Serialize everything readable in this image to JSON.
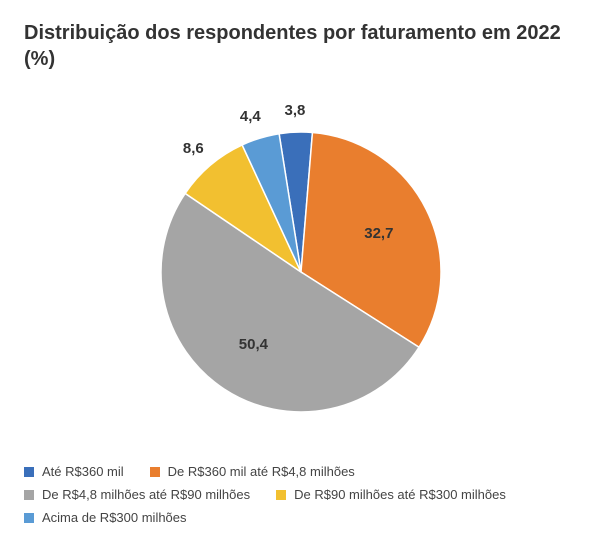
{
  "chart": {
    "type": "pie",
    "title": "Distribuição dos respondentes por faturamento em 2022 (%)",
    "title_fontsize": 20,
    "title_color": "#333333",
    "background_color": "#ffffff",
    "radius": 140,
    "start_angle_deg": -99,
    "label_fontsize": 15,
    "label_color": "#333333",
    "legend_fontsize": 13,
    "slices": [
      {
        "label": "Até R$360 mil",
        "value": 3.8,
        "value_text": "3,8",
        "color": "#3a6fba"
      },
      {
        "label": "De R$360 mil até R$4,8 milhões",
        "value": 32.7,
        "value_text": "32,7",
        "color": "#e97e2e"
      },
      {
        "label": "De R$4,8 milhões até R$90 milhões",
        "value": 50.4,
        "value_text": "50,4",
        "color": "#a5a5a5"
      },
      {
        "label": "De R$90 milhões até R$300 milhões",
        "value": 8.6,
        "value_text": "8,6",
        "color": "#f2c030"
      },
      {
        "label": "Acima de R$300 milhões",
        "value": 4.4,
        "value_text": "4,4",
        "color": "#5a9bd5"
      }
    ]
  }
}
